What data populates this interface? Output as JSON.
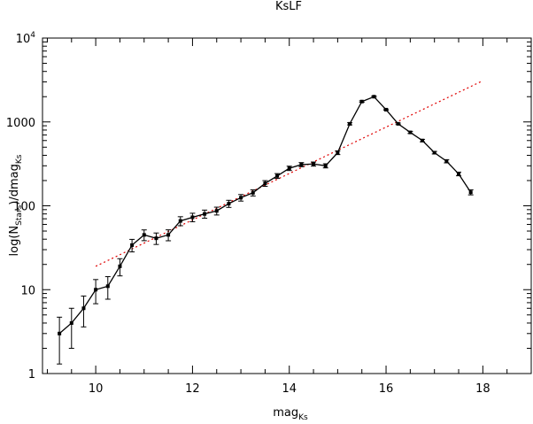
{
  "chart_data": {
    "type": "line",
    "title": "KsLF",
    "xlabel": {
      "main": "mag",
      "sub": "Ks"
    },
    "ylabel": {
      "pre": "log(N",
      "sub1": "Stars",
      "mid": ")/dmag",
      "sub2": "Ks"
    },
    "x_scale": "linear",
    "y_scale": "log",
    "xlim": [
      8.9,
      19.0
    ],
    "ylim": [
      1,
      10000
    ],
    "x_ticks": [
      10,
      12,
      14,
      16,
      18
    ],
    "x_tick_labels": [
      "10",
      "12",
      "14",
      "16",
      "18"
    ],
    "y_ticks": [
      1,
      10,
      100,
      1000,
      10000
    ],
    "y_tick_labels": [
      {
        "base": "1",
        "exp": ""
      },
      {
        "base": "10",
        "exp": ""
      },
      {
        "base": "100",
        "exp": ""
      },
      {
        "base": "1000",
        "exp": ""
      },
      {
        "base": "10",
        "exp": "4"
      }
    ],
    "grid": false,
    "series": [
      {
        "style": "solid-black-with-errorbars",
        "x": [
          9.25,
          9.5,
          9.75,
          10.0,
          10.25,
          10.5,
          10.75,
          11.0,
          11.25,
          11.5,
          11.75,
          12.0,
          12.25,
          12.5,
          12.75,
          13.0,
          13.25,
          13.5,
          13.75,
          14.0,
          14.25,
          14.5,
          14.75,
          15.0,
          15.25,
          15.5,
          15.75,
          16.0,
          16.25,
          16.5,
          16.75,
          17.0,
          17.25,
          17.5,
          17.75
        ],
        "y": [
          3,
          4,
          6,
          10,
          11,
          19,
          34,
          45,
          41,
          45,
          66,
          73,
          80,
          87,
          106,
          125,
          143,
          185,
          227,
          280,
          310,
          315,
          300,
          430,
          950,
          1750,
          2000,
          1400,
          950,
          750,
          600,
          430,
          340,
          240,
          145
        ],
        "y_err_low": [
          1.3,
          2.0,
          3.6,
          6.8,
          7.7,
          14.6,
          28.2,
          38.4,
          34.6,
          38.3,
          57.9,
          64.5,
          71.1,
          77.7,
          95.7,
          113.8,
          131.0,
          170.4,
          211.9,
          263.3,
          292.5,
          297.3,
          283.0,
          408.0,
          922.0,
          1715.0,
          1963.0,
          1375.0,
          930.0,
          728.0,
          580.0,
          415.0,
          325.0,
          228.0,
          135.0
        ],
        "y_err_high": [
          4.7,
          6.0,
          8.4,
          13.2,
          14.3,
          23.4,
          39.8,
          51.6,
          47.4,
          51.7,
          74.1,
          81.5,
          88.9,
          96.3,
          116.3,
          136.2,
          155.0,
          199.6,
          242.1,
          296.7,
          327.5,
          332.7,
          317.0,
          452.0,
          978.0,
          1785.0,
          2037.0,
          1425.0,
          970.0,
          772.0,
          620.0,
          445.0,
          355.0,
          252.0,
          155.0
        ]
      },
      {
        "style": "dotted-red-fit",
        "x": [
          10.0,
          18.0
        ],
        "y": [
          19,
          3100
        ]
      }
    ]
  }
}
